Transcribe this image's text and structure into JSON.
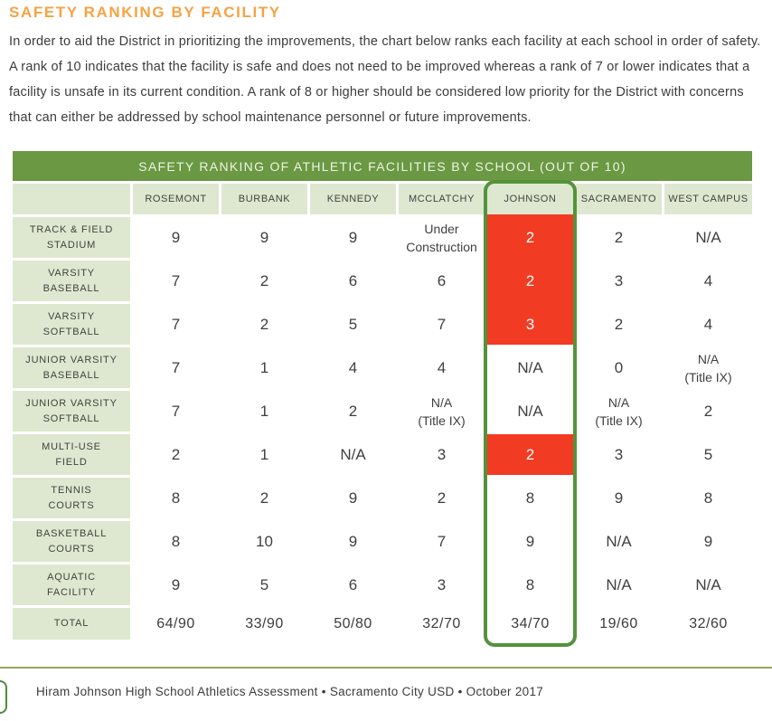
{
  "page": {
    "heading": "SAFETY RANKING BY FACILITY",
    "intro": "In order to aid the District in prioritizing the improvements, the chart below ranks each facility at each school in order of safety. A rank of 10 indicates that the facility is safe and does not need to be improved whereas a rank of 7 or lower indicates that a facility is unsafe in its current condition. A rank of 8 or higher should be considered low priority for the District with concerns that can either be addressed by school maintenance personnel or future improvements.",
    "footer": "Hiram Johnson High School Athletics Assessment  •  Sacramento City USD •  October 2017"
  },
  "colors": {
    "heading_orange": "#f5a343",
    "table_header_green": "#6b9842",
    "cell_light_green": "#dee8d0",
    "unsafe_red": "#f23b23",
    "highlight_outline_green": "#55923c",
    "footer_rule_olive": "#9ba85f",
    "body_text": "#3c3c3c"
  },
  "table": {
    "title": "SAFETY RANKING OF ATHLETIC FACILITIES BY SCHOOL (OUT OF 10)",
    "corner": "",
    "columns": [
      "ROSEMONT",
      "BURBANK",
      "KENNEDY",
      "MCCLATCHY",
      "JOHNSON",
      "SACRAMENTO",
      "WEST CAMPUS"
    ],
    "highlighted_column": "JOHNSON",
    "rows": [
      {
        "label": "TRACK & FIELD\nSTADIUM",
        "values": [
          "9",
          "9",
          "9",
          "Under\nConstruction",
          "2",
          "2",
          "N/A"
        ]
      },
      {
        "label": "VARSITY\nBASEBALL",
        "values": [
          "7",
          "2",
          "6",
          "6",
          "2",
          "3",
          "4"
        ]
      },
      {
        "label": "VARSITY\nSOFTBALL",
        "values": [
          "7",
          "2",
          "5",
          "7",
          "3",
          "2",
          "4"
        ]
      },
      {
        "label": "JUNIOR VARSITY\nBASEBALL",
        "values": [
          "7",
          "1",
          "4",
          "4",
          "N/A",
          "0",
          "N/A\n(Title IX)"
        ]
      },
      {
        "label": "JUNIOR VARSITY\nSOFTBALL",
        "values": [
          "7",
          "1",
          "2",
          "N/A\n(Title IX)",
          "N/A",
          "N/A\n(Title IX)",
          "2"
        ]
      },
      {
        "label": "MULTI-USE\nFIELD",
        "values": [
          "2",
          "1",
          "N/A",
          "3",
          "2",
          "3",
          "5"
        ]
      },
      {
        "label": "TENNIS\nCOURTS",
        "values": [
          "8",
          "2",
          "9",
          "2",
          "8",
          "9",
          "8"
        ]
      },
      {
        "label": "BASKETBALL\nCOURTS",
        "values": [
          "8",
          "10",
          "9",
          "7",
          "9",
          "N/A",
          "9"
        ]
      },
      {
        "label": "AQUATIC\nFACILITY",
        "values": [
          "9",
          "5",
          "6",
          "3",
          "8",
          "N/A",
          "N/A"
        ]
      }
    ],
    "total_row": {
      "label": "TOTAL",
      "values": [
        "64/90",
        "33/90",
        "50/80",
        "32/70",
        "34/70",
        "19/60",
        "32/60"
      ]
    }
  }
}
